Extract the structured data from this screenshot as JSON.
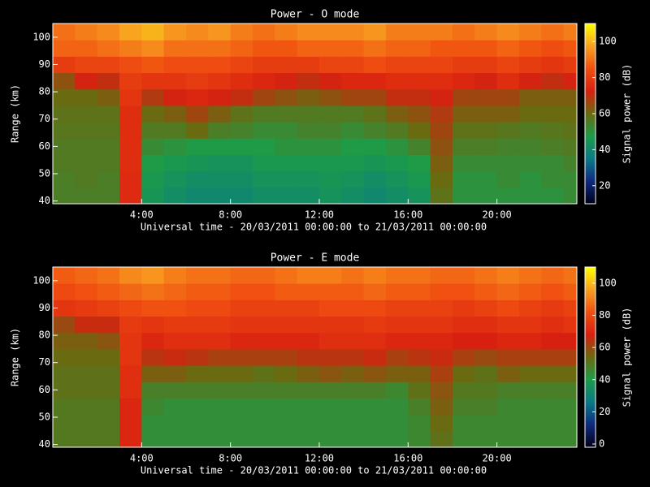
{
  "chart_data": [
    {
      "type": "heatmap",
      "title": "Power - O mode",
      "xlabel": "Universal time - 20/03/2011 00:00:00 to 21/03/2011 00:00:00",
      "ylabel": "Range (km)",
      "colorbar_label": "Signal power (dB)",
      "x_bins": [
        0,
        1,
        2,
        3,
        4,
        5,
        6,
        7,
        8,
        9,
        10,
        11,
        12,
        13,
        14,
        15,
        16,
        17,
        18,
        19,
        20,
        21,
        22,
        23,
        23.6
      ],
      "y_bins": [
        39,
        45,
        51,
        57,
        63,
        69,
        75,
        81,
        87,
        93,
        99,
        105
      ],
      "values": [
        [
          55,
          55,
          55,
          75,
          45,
          42,
          40,
          40,
          40,
          42,
          42,
          42,
          44,
          42,
          40,
          42,
          44,
          58,
          50,
          50,
          50,
          50,
          50,
          52
        ],
        [
          55,
          56,
          55,
          75,
          46,
          44,
          42,
          42,
          42,
          44,
          44,
          44,
          45,
          44,
          42,
          44,
          46,
          60,
          50,
          50,
          52,
          50,
          52,
          52
        ],
        [
          56,
          56,
          56,
          76,
          48,
          46,
          45,
          44,
          44,
          46,
          46,
          46,
          46,
          46,
          45,
          46,
          48,
          62,
          52,
          52,
          52,
          52,
          52,
          54
        ],
        [
          56,
          56,
          56,
          76,
          52,
          50,
          48,
          48,
          48,
          48,
          50,
          50,
          50,
          48,
          48,
          50,
          54,
          64,
          55,
          55,
          54,
          54,
          55,
          56
        ],
        [
          57,
          57,
          57,
          76,
          56,
          56,
          60,
          55,
          54,
          52,
          52,
          54,
          54,
          52,
          54,
          56,
          60,
          66,
          58,
          58,
          57,
          56,
          57,
          58
        ],
        [
          58,
          58,
          58,
          76,
          60,
          62,
          66,
          62,
          58,
          56,
          56,
          56,
          56,
          56,
          58,
          62,
          64,
          68,
          62,
          62,
          62,
          60,
          60,
          60
        ],
        [
          60,
          60,
          62,
          78,
          68,
          72,
          74,
          72,
          70,
          66,
          64,
          62,
          64,
          66,
          66,
          70,
          70,
          72,
          66,
          66,
          66,
          62,
          62,
          62
        ],
        [
          64,
          72,
          70,
          80,
          78,
          78,
          80,
          78,
          76,
          74,
          72,
          70,
          72,
          74,
          74,
          76,
          76,
          76,
          74,
          72,
          76,
          72,
          70,
          72
        ],
        [
          80,
          82,
          82,
          84,
          86,
          84,
          84,
          84,
          82,
          80,
          80,
          80,
          82,
          82,
          84,
          82,
          82,
          82,
          80,
          80,
          82,
          80,
          78,
          80
        ],
        [
          88,
          88,
          90,
          92,
          94,
          90,
          90,
          90,
          88,
          86,
          86,
          88,
          88,
          88,
          90,
          88,
          88,
          86,
          86,
          86,
          88,
          86,
          84,
          86
        ],
        [
          90,
          92,
          94,
          98,
          100,
          96,
          94,
          96,
          92,
          90,
          92,
          94,
          94,
          94,
          96,
          92,
          92,
          92,
          90,
          92,
          94,
          92,
          90,
          92
        ]
      ],
      "xlim": [
        0,
        23.6
      ],
      "ylim": [
        39,
        105
      ],
      "xticks": [
        {
          "value": 4,
          "label": "4:00"
        },
        {
          "value": 8,
          "label": "8:00"
        },
        {
          "value": 12,
          "label": "12:00"
        },
        {
          "value": 16,
          "label": "16:00"
        },
        {
          "value": 20,
          "label": "20:00"
        }
      ],
      "yticks": [
        40,
        50,
        60,
        70,
        80,
        90,
        100
      ],
      "clim": [
        10,
        110
      ],
      "cticks": [
        20,
        40,
        60,
        80,
        100
      ],
      "colormap": [
        "#000018",
        "#102a80",
        "#0a7a88",
        "#1c9c48",
        "#6a6a10",
        "#d82010",
        "#f05010",
        "#f8a020",
        "#ffff00"
      ]
    },
    {
      "type": "heatmap",
      "title": "Power - E mode",
      "xlabel": "Universal time - 20/03/2011 00:00:00 to 21/03/2011 00:00:00",
      "ylabel": "Range (km)",
      "colorbar_label": "Signal power (dB)",
      "x_bins": [
        0,
        1,
        2,
        3,
        4,
        5,
        6,
        7,
        8,
        9,
        10,
        11,
        12,
        13,
        14,
        15,
        16,
        17,
        18,
        19,
        20,
        21,
        22,
        23,
        23.6
      ],
      "y_bins": [
        39,
        45,
        51,
        57,
        63,
        69,
        75,
        81,
        87,
        93,
        99,
        105
      ],
      "values": [
        [
          50,
          50,
          50,
          70,
          44,
          44,
          44,
          44,
          44,
          44,
          44,
          44,
          44,
          44,
          44,
          44,
          46,
          52,
          46,
          46,
          46,
          46,
          46,
          46
        ],
        [
          50,
          50,
          50,
          70,
          44,
          44,
          44,
          44,
          44,
          44,
          44,
          44,
          44,
          44,
          44,
          44,
          46,
          54,
          46,
          46,
          46,
          46,
          46,
          46
        ],
        [
          50,
          50,
          50,
          70,
          46,
          44,
          44,
          44,
          44,
          44,
          44,
          44,
          44,
          44,
          44,
          44,
          48,
          56,
          48,
          48,
          46,
          46,
          46,
          46
        ],
        [
          52,
          52,
          52,
          72,
          48,
          48,
          48,
          48,
          48,
          48,
          48,
          48,
          48,
          48,
          48,
          46,
          52,
          58,
          50,
          50,
          48,
          48,
          48,
          48
        ],
        [
          52,
          52,
          52,
          72,
          56,
          56,
          54,
          54,
          54,
          52,
          54,
          56,
          58,
          56,
          58,
          56,
          56,
          62,
          54,
          52,
          56,
          54,
          54,
          54
        ],
        [
          54,
          54,
          54,
          74,
          64,
          66,
          64,
          62,
          62,
          62,
          62,
          64,
          64,
          64,
          66,
          62,
          64,
          66,
          62,
          60,
          62,
          62,
          62,
          62
        ],
        [
          56,
          56,
          58,
          74,
          70,
          72,
          72,
          72,
          70,
          70,
          70,
          70,
          72,
          72,
          72,
          70,
          70,
          70,
          68,
          68,
          70,
          70,
          68,
          68
        ],
        [
          60,
          66,
          66,
          76,
          74,
          76,
          76,
          76,
          74,
          74,
          74,
          74,
          74,
          74,
          76,
          74,
          74,
          74,
          72,
          72,
          74,
          74,
          72,
          74
        ],
        [
          74,
          76,
          78,
          80,
          82,
          82,
          80,
          80,
          78,
          78,
          78,
          78,
          80,
          80,
          80,
          78,
          78,
          78,
          76,
          78,
          80,
          78,
          76,
          78
        ],
        [
          80,
          82,
          84,
          86,
          88,
          86,
          84,
          84,
          82,
          82,
          84,
          84,
          84,
          84,
          86,
          84,
          84,
          82,
          82,
          84,
          86,
          84,
          82,
          84
        ],
        [
          84,
          86,
          88,
          92,
          94,
          90,
          88,
          88,
          86,
          86,
          88,
          90,
          90,
          88,
          90,
          88,
          88,
          86,
          86,
          88,
          90,
          88,
          86,
          88
        ]
      ],
      "xlim": [
        0,
        23.6
      ],
      "ylim": [
        39,
        105
      ],
      "xticks": [
        {
          "value": 4,
          "label": "4:00"
        },
        {
          "value": 8,
          "label": "8:00"
        },
        {
          "value": 12,
          "label": "12:00"
        },
        {
          "value": 16,
          "label": "16:00"
        },
        {
          "value": 20,
          "label": "20:00"
        }
      ],
      "yticks": [
        40,
        50,
        60,
        70,
        80,
        90,
        100
      ],
      "clim": [
        -2,
        110
      ],
      "cticks": [
        0,
        20,
        40,
        60,
        80,
        100
      ],
      "colormap": [
        "#000018",
        "#102a80",
        "#0a7a88",
        "#1c9c48",
        "#6a6a10",
        "#d82010",
        "#f05010",
        "#f8a020",
        "#ffff00"
      ]
    }
  ]
}
